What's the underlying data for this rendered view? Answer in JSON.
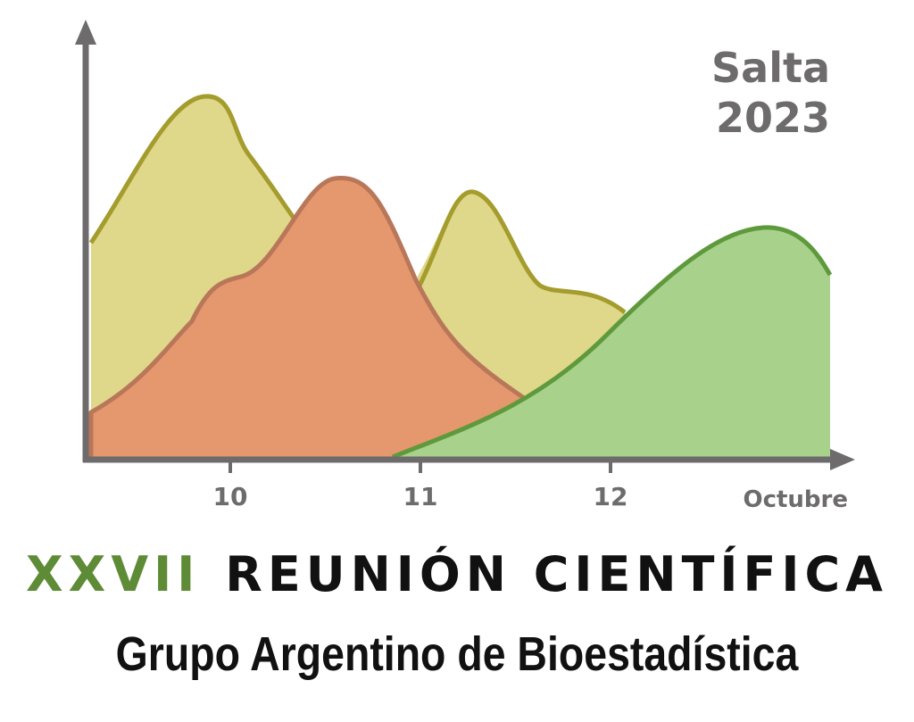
{
  "location": {
    "city": "Salta",
    "year": "2023"
  },
  "axis": {
    "ticks": [
      "10",
      "11",
      "12"
    ],
    "title": "Octubre"
  },
  "title": {
    "edition": "XXVII",
    "event": "REUNIÓN CIENTÍFICA",
    "organization": "Grupo Argentino de Bioestadística"
  },
  "colors": {
    "axis": "#6d6b6c",
    "yellow_fill": "#dfd789",
    "yellow_stroke": "#a49c2c",
    "orange_fill": "#e5976d",
    "orange_stroke": "#b9775a",
    "green_fill": "#a8d18b",
    "green_stroke": "#5e9a3c",
    "roman_text": "#5e8b36"
  }
}
